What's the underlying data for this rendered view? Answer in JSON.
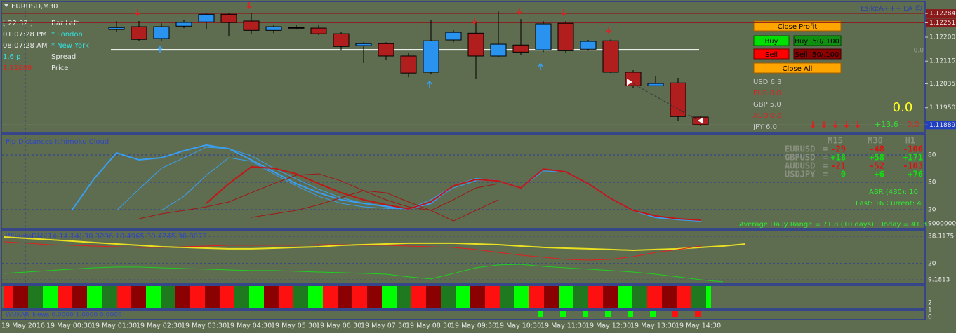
{
  "window": {
    "symbol": "EURUSD,M30",
    "ea": "EsikeA+++ EA ☺"
  },
  "info": [
    {
      "value": "[ 22.32 ]",
      "label": "Bar Left"
    },
    {
      "value": "01:07:28 PM",
      "label": "* London"
    },
    {
      "value": "08:07:28 AM",
      "label": "* New York"
    },
    {
      "value": "1.6 p",
      "label": "Spread"
    },
    {
      "value": "1.11889",
      "label": "Price"
    }
  ],
  "buttons": {
    "close_profit": "Close Profit",
    "buy": "Buy",
    "buy_partial": "Buy .50/.100",
    "sell": "Sell",
    "sell_partial": "Sell .50/.100",
    "close_all": "Close All"
  },
  "strength": [
    "USD 6.3",
    "EUR 0.0",
    "GBP 5.0",
    "AUD 0.0",
    "JPY 6.0"
  ],
  "totals": {
    "big": "0.0",
    "plus": "+13.6",
    "minus": "0.0",
    "level": "0.0"
  },
  "chart_data": [
    {
      "type": "candlestick",
      "up_color": "#2a93f0",
      "down_color": "#b01e1e",
      "doji_color": "#000000",
      "open": [
        1.12227,
        1.12237,
        1.12195,
        1.12239,
        1.12254,
        1.12281,
        1.12257,
        1.12224,
        1.12234,
        1.12232,
        1.12212,
        1.1217,
        1.12177,
        1.12133,
        1.12076,
        1.1219,
        1.12214,
        1.12133,
        1.12172,
        1.12155,
        1.12249,
        1.12157,
        1.12187,
        1.12076,
        1.12028,
        1.12038,
        1.11917
      ],
      "high": [
        1.12257,
        1.12257,
        1.12249,
        1.12262,
        1.12286,
        1.12286,
        1.12286,
        1.12244,
        1.12244,
        1.12242,
        1.12219,
        1.12182,
        1.12182,
        1.12143,
        1.12262,
        1.12224,
        1.12257,
        1.12291,
        1.12264,
        1.12257,
        1.12257,
        1.1219,
        1.12192,
        1.12083,
        1.12063,
        1.12056,
        1.11922
      ],
      "low": [
        1.12219,
        1.12187,
        1.12187,
        1.12232,
        1.12227,
        1.12202,
        1.12212,
        1.12214,
        1.12227,
        1.12207,
        1.12152,
        1.12108,
        1.1212,
        1.12058,
        1.12068,
        1.12182,
        1.12053,
        1.12128,
        1.12138,
        1.12147,
        1.12145,
        1.12152,
        1.12073,
        1.12019,
        1.12026,
        1.11904,
        1.11885
      ],
      "close": [
        1.12234,
        1.12192,
        1.12237,
        1.12252,
        1.12281,
        1.12252,
        1.12224,
        1.12237,
        1.12234,
        1.12212,
        1.12167,
        1.12177,
        1.12133,
        1.12073,
        1.12187,
        1.12217,
        1.12133,
        1.12175,
        1.12147,
        1.12247,
        1.12152,
        1.12185,
        1.12076,
        1.12028,
        1.12036,
        1.11919,
        1.1189
      ],
      "ylim": [
        1.11865,
        1.12324
      ],
      "yticks": [
        1.12284,
        1.12251,
        {
          "value": 1.122,
          "label": "1.12200"
        },
        1.12115,
        1.12035,
        {
          "value": 1.1195,
          "label": "1.11950"
        },
        1.11889
      ],
      "hline": {
        "value": 1.12155,
        "color": "#ffffff"
      }
    },
    {
      "type": "line",
      "title": "Pip Distances Ichimoku Cloud",
      "ylim": [
        0.8,
        102.3
      ],
      "yticks": [
        80,
        50,
        20
      ],
      "bottom_label": "90000000",
      "series": [
        {
          "color": "#3a9ef0",
          "values": [
            null,
            null,
            null,
            19.2,
            53.8,
            82.3,
            74.6,
            76.9,
            84.6,
            90.8,
            86.9,
            74.6,
            61.5,
            48.5,
            38.5,
            30.8,
            26.9,
            23.8,
            20.8,
            26.9,
            46.2,
            53.8,
            51.5,
            43.8,
            64.6,
            61.5,
            48.5,
            32.3,
            19.2,
            11.5,
            9.2,
            7.7,
            null,
            null
          ]
        },
        {
          "color": "#3a9ef0",
          "values": [
            null,
            null,
            null,
            null,
            null,
            19.2,
            42.3,
            65.4,
            76.9,
            88.5,
            86.9,
            79.2,
            65.4,
            53.8,
            42.3,
            33.1,
            26.9,
            23.1,
            20.8,
            30.8,
            46.2,
            52.3,
            51.5,
            43.8,
            62.3,
            61.5,
            48.5,
            32.3,
            19.2,
            11.5,
            9.2,
            7.7,
            null,
            null
          ]
        },
        {
          "color": "#3a9ef0",
          "values": [
            null,
            null,
            null,
            null,
            null,
            null,
            null,
            19.2,
            34.6,
            57.7,
            76.9,
            73.1,
            59.2,
            46.2,
            34.6,
            26.9,
            23.1,
            21.5,
            20.8,
            28.5,
            43.8,
            51.5,
            null,
            null,
            null,
            null,
            null,
            null,
            null,
            null,
            null,
            null,
            null,
            null
          ]
        },
        {
          "color": "#c01818",
          "values": [
            null,
            null,
            null,
            null,
            null,
            null,
            null,
            null,
            null,
            26.9,
            48.5,
            66.9,
            65.4,
            59.2,
            48.5,
            38.5,
            30.8,
            25.4,
            20.8,
            28.5,
            46.2,
            53.1,
            51.5,
            43.8,
            64.6,
            61.5,
            48.5,
            32.3,
            19.2,
            13.1,
            10,
            8.5,
            null,
            null
          ]
        },
        {
          "color": "#a01818",
          "values": [
            null,
            null,
            null,
            null,
            null,
            null,
            10,
            15.4,
            19.2,
            23.1,
            28.5,
            38.5,
            48.5,
            57.7,
            59.2,
            51.5,
            40.8,
            30.8,
            23.1,
            19.2,
            30.8,
            43.8,
            48.5,
            null,
            null,
            null,
            null,
            null,
            null,
            null,
            null,
            null,
            null,
            null
          ]
        },
        {
          "color": "#a01818",
          "values": [
            null,
            null,
            null,
            null,
            null,
            null,
            null,
            null,
            null,
            null,
            null,
            11.5,
            15.4,
            19.2,
            25.4,
            33.1,
            40.8,
            38.5,
            28.5,
            19.2,
            7.7,
            19.2,
            30.8,
            null,
            null,
            null,
            null,
            null,
            null,
            null,
            null,
            null,
            null,
            null
          ]
        }
      ]
    },
    {
      "type": "line",
      "title": "WildersDMI(14,14,14) 30.3296 10.4965 30.4745 30.8072",
      "ylim": [
        6.5,
        41.8
      ],
      "yticks": [
        38.1175,
        20,
        9.1813
      ],
      "series": [
        {
          "color": "#e8e020",
          "values": [
            37.6,
            36.7,
            35.8,
            34.9,
            33.9,
            33.0,
            32.1,
            31.1,
            30.7,
            30.2,
            29.8,
            29.8,
            30.2,
            30.7,
            31.1,
            32.1,
            32.5,
            33.0,
            33.5,
            33.5,
            33.5,
            33.0,
            32.5,
            31.6,
            30.7,
            30.2,
            29.8,
            29.3,
            28.8,
            29.3,
            29.8,
            30.7,
            31.6,
            33.0
          ]
        },
        {
          "color": "#e02020",
          "values": [
            34.4,
            33.5,
            32.5,
            32.1,
            31.6,
            31.1,
            30.7,
            30.7,
            31.1,
            31.6,
            32.1,
            32.1,
            32.1,
            32.1,
            32.5,
            32.5,
            32.1,
            32.1,
            31.6,
            31.1,
            30.7,
            29.3,
            27.4,
            25.6,
            24.2,
            22.8,
            22.3,
            22.8,
            24.6,
            27.4,
            29.3,
            31.6,
            null,
            null
          ]
        },
        {
          "color": "#20d020",
          "values": [
            13.5,
            14.4,
            15.4,
            16.3,
            17.2,
            17.7,
            17.7,
            17.2,
            16.7,
            16.3,
            15.8,
            15.4,
            15.4,
            14.9,
            14.4,
            14.0,
            13.5,
            13.0,
            11.2,
            9.8,
            13.5,
            17.2,
            19.1,
            19.5,
            18.1,
            17.2,
            16.3,
            15.4,
            14.4,
            13.0,
            11.2,
            9.3,
            7.9,
            null
          ]
        }
      ]
    }
  ],
  "pips": {
    "headers": [
      "M15",
      "M30",
      "H1"
    ],
    "rows": [
      {
        "pair": "EURUSD",
        "sep": "=",
        "color": "#e01010",
        "values": [
          "-29",
          "-48",
          "-100"
        ]
      },
      {
        "pair": "GBPUSD",
        "sep": "=",
        "color": "#10e010",
        "values": [
          "+18",
          "+58",
          "+171"
        ]
      },
      {
        "pair": "AUDUSD",
        "sep": "=",
        "color": "#e01010",
        "values": [
          "-21",
          "-52",
          "-103"
        ]
      },
      {
        "pair": "USDJPY",
        "sep": "=",
        "color": "#10e010",
        "values": [
          "0",
          "+6",
          "+76"
        ]
      }
    ],
    "abr": "ABR (480): 10",
    "last": "Last: 16 Current: 4",
    "adr": "Average Daily Range = 71.8 (10 days)   Today = 41.3"
  },
  "news": {
    "title": "WUKAR_News 0.0000 1.0000 0.0000",
    "ticks": [
      "2",
      "1",
      "0"
    ]
  },
  "xlabels": [
    "19 May 2016",
    "19 May 00:30",
    "19 May 01:30",
    "19 May 02:30",
    "19 May 03:30",
    "19 May 04:30",
    "19 May 05:30",
    "19 May 06:30",
    "19 May 07:30",
    "19 May 08:30",
    "19 May 09:30",
    "19 May 10:30",
    "19 May 11:30",
    "19 May 12:30",
    "19 May 13:30",
    "19 May 14:30"
  ]
}
